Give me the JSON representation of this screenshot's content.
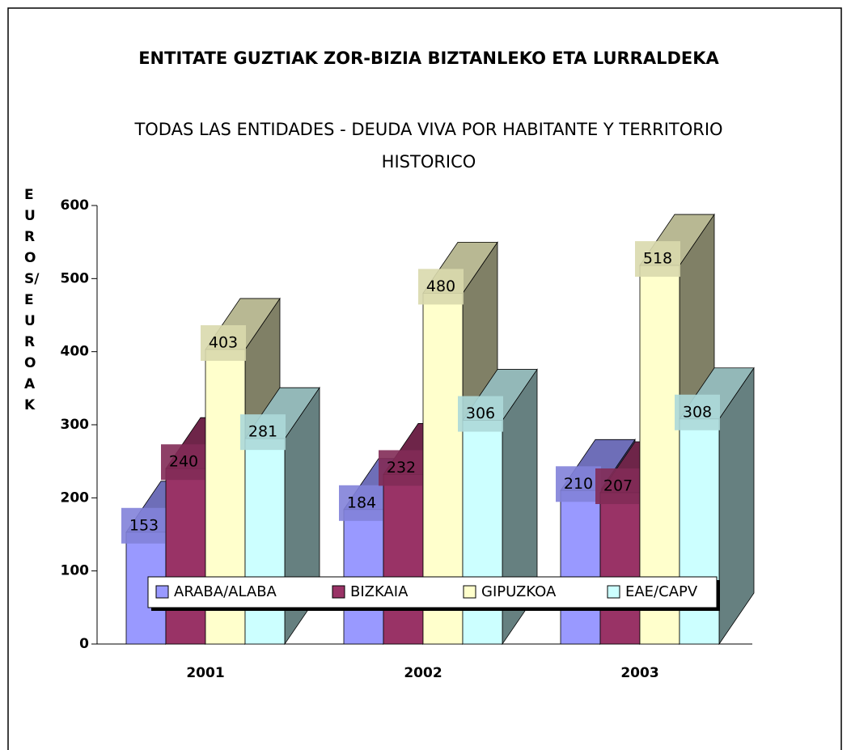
{
  "chart_data": {
    "type": "bar3d",
    "title": "ENTITATE GUZTIAK ZOR-BIZIA BIZTANLEKO ETA LURRALDEKA",
    "subtitle": "TODAS LAS ENTIDADES -  DEUDA VIVA POR HABITANTE Y TERRITORIO HISTORICO",
    "y_label": "EUROS/EUROAK",
    "categories": [
      "2001",
      "2002",
      "2003"
    ],
    "series": [
      {
        "name": "ARABA/ALABA",
        "color": "#9999ff",
        "values": [
          153,
          184,
          210
        ]
      },
      {
        "name": "BIZKAIA",
        "color": "#993366",
        "values": [
          240,
          232,
          207
        ]
      },
      {
        "name": "GIPUZKOA",
        "color": "#ffffcc",
        "values": [
          403,
          480,
          518
        ]
      },
      {
        "name": "EAE/CAPV",
        "color": "#ccffff",
        "values": [
          281,
          306,
          308
        ]
      }
    ],
    "ylim": [
      0,
      600
    ],
    "yticks": [
      0,
      100,
      200,
      300,
      400,
      500,
      600
    ],
    "grid": false,
    "legend": "bottom"
  }
}
